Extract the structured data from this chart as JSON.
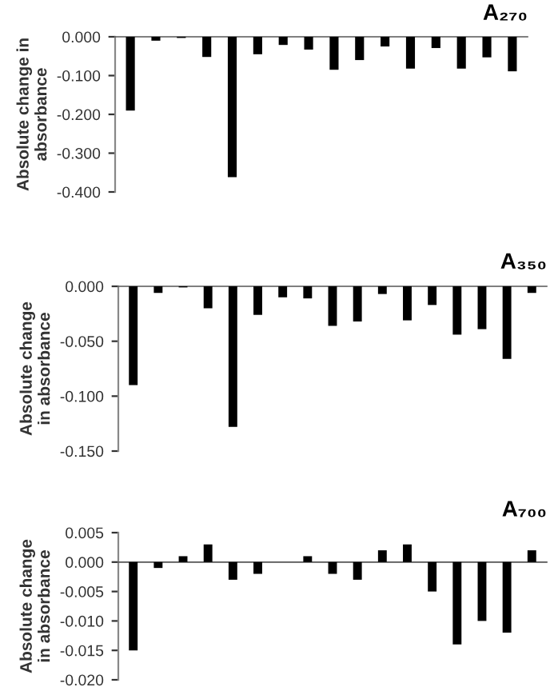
{
  "chart_data": [
    {
      "type": "bar",
      "title": "A₂₇₀",
      "ylabel": "Absolute change in\nabsorbance",
      "color": "#000000",
      "categories": [
        null,
        null,
        null,
        null,
        null,
        null,
        null,
        null,
        null,
        null,
        null,
        null,
        null,
        null,
        null,
        null
      ],
      "values": [
        -0.19,
        -0.01,
        -0.003,
        -0.052,
        -0.362,
        -0.045,
        -0.021,
        -0.033,
        -0.085,
        -0.06,
        -0.025,
        -0.082,
        -0.029,
        -0.082,
        -0.053,
        -0.089
      ],
      "ylim": [
        -0.4,
        0.0
      ],
      "yticks": [
        {
          "value": -0.4,
          "label": "-0.400"
        },
        {
          "value": -0.3,
          "label": "-0.300"
        },
        {
          "value": -0.2,
          "label": "-0.200"
        },
        {
          "value": -0.1,
          "label": "-0.100"
        },
        {
          "value": 0.0,
          "label": "0.000"
        }
      ]
    },
    {
      "type": "bar",
      "title": "A₃₅₀",
      "ylabel": "Absolute change\nin absorbance",
      "color": "#000000",
      "categories": [
        null,
        null,
        null,
        null,
        null,
        null,
        null,
        null,
        null,
        null,
        null,
        null,
        null,
        null,
        null,
        null,
        null
      ],
      "values": [
        -0.09,
        -0.006,
        -0.001,
        -0.02,
        -0.128,
        -0.026,
        -0.01,
        -0.011,
        -0.036,
        -0.032,
        -0.007,
        -0.031,
        -0.017,
        -0.044,
        -0.039,
        -0.066,
        -0.006
      ],
      "ylim": [
        -0.15,
        0.0
      ],
      "yticks": [
        {
          "value": -0.15,
          "label": "-0.150"
        },
        {
          "value": -0.1,
          "label": "-0.100"
        },
        {
          "value": -0.05,
          "label": "-0.050"
        },
        {
          "value": 0.0,
          "label": "0.000"
        }
      ]
    },
    {
      "type": "bar",
      "title": "A₇₀₀",
      "ylabel": "Absolute change\nin absorbance",
      "color": "#000000",
      "categories": [
        null,
        null,
        null,
        null,
        null,
        null,
        null,
        null,
        null,
        null,
        null,
        null,
        null,
        null,
        null,
        null,
        null
      ],
      "values": [
        -0.015,
        -0.001,
        0.001,
        0.003,
        -0.003,
        -0.002,
        0.0,
        0.001,
        -0.002,
        -0.003,
        0.002,
        0.003,
        -0.005,
        -0.014,
        -0.01,
        -0.012,
        0.002
      ],
      "ylim": [
        -0.02,
        0.005
      ],
      "yticks": [
        {
          "value": -0.02,
          "label": "-0.020"
        },
        {
          "value": -0.015,
          "label": "-0.015"
        },
        {
          "value": -0.01,
          "label": "-0.010"
        },
        {
          "value": -0.005,
          "label": "-0.005"
        },
        {
          "value": 0.0,
          "label": "0.000"
        },
        {
          "value": 0.005,
          "label": "0.005"
        }
      ]
    }
  ]
}
